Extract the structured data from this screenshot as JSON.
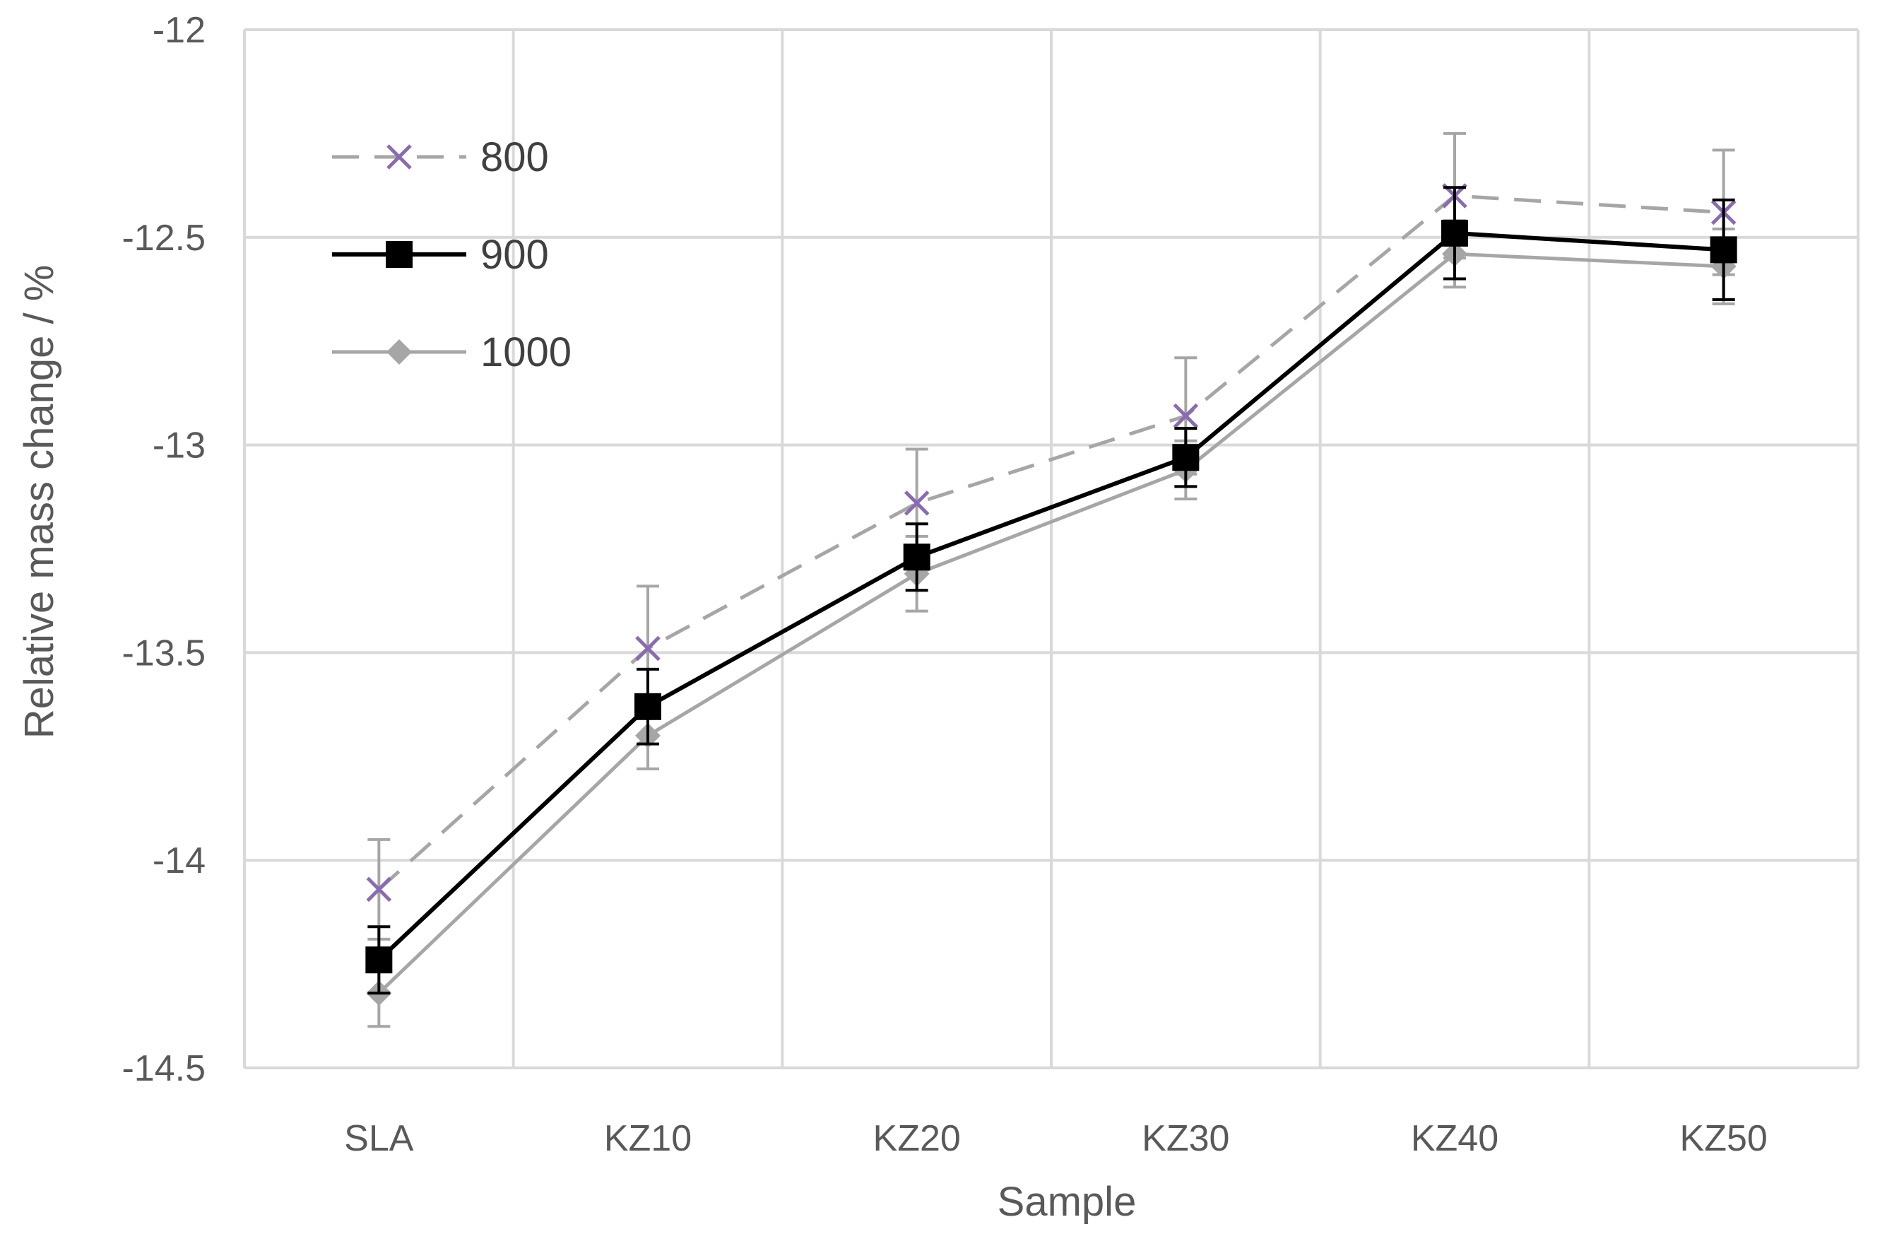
{
  "chart_data": {
    "type": "line",
    "title": "",
    "xlabel": "Sample",
    "ylabel": "Relative mass change / %",
    "categories": [
      "SLA",
      "KZ10",
      "KZ20",
      "KZ30",
      "KZ40",
      "KZ50"
    ],
    "ylim": [
      -14.5,
      -12
    ],
    "yticks": [
      -12,
      -12.5,
      -13,
      -13.5,
      -14,
      -14.5
    ],
    "ytick_labels": [
      "-12",
      "-12.5",
      "-13",
      "-13.5",
      "-14",
      "-14.5"
    ],
    "grid": true,
    "legend_position": "top-left",
    "series": [
      {
        "name": "800",
        "values": [
          -14.07,
          -13.49,
          -13.14,
          -12.93,
          -12.4,
          -12.44
        ],
        "errors": [
          0.12,
          0.15,
          0.13,
          0.14,
          0.15,
          0.15
        ],
        "color": "#a6a6a6",
        "marker_color": "#8a6bb0",
        "line_style": "dashed",
        "marker": "x"
      },
      {
        "name": "900",
        "values": [
          -14.24,
          -13.63,
          -13.27,
          -13.03,
          -12.49,
          -12.53
        ],
        "errors": [
          0.08,
          0.09,
          0.08,
          0.07,
          0.11,
          0.12
        ],
        "color": "#000000",
        "marker_color": "#000000",
        "line_style": "solid",
        "marker": "square"
      },
      {
        "name": "1000",
        "values": [
          -14.32,
          -13.7,
          -13.31,
          -13.06,
          -12.54,
          -12.57
        ],
        "errors": [
          0.08,
          0.08,
          0.09,
          0.07,
          0.08,
          0.09
        ],
        "color": "#a6a6a6",
        "marker_color": "#a6a6a6",
        "line_style": "solid",
        "marker": "diamond"
      }
    ]
  }
}
